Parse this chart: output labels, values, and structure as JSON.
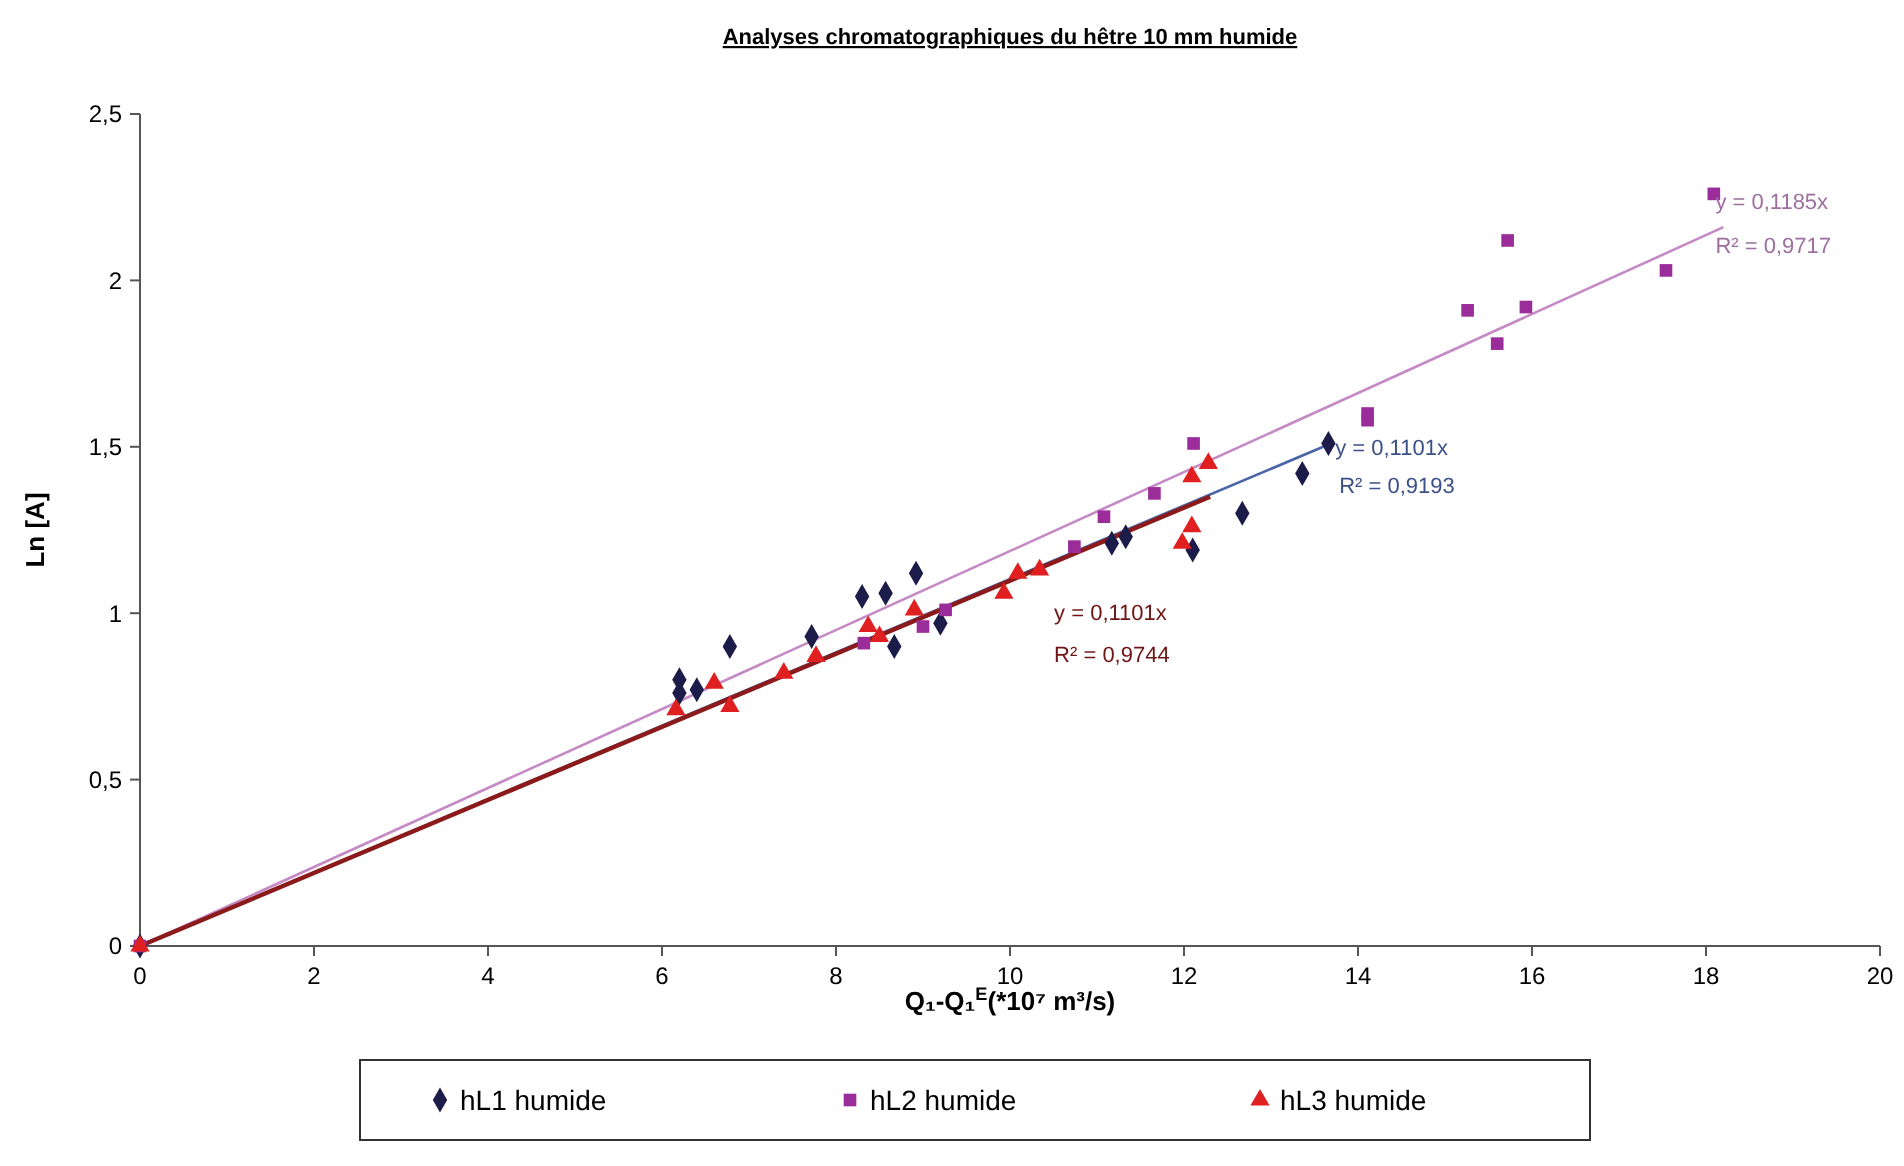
{
  "chart_data": {
    "type": "scatter",
    "title": "Analyses chromatographiques du hêtre 10 mm humide",
    "xlabel": "Q₁-Q₁$^{E}$(*10⁷ m³/s)",
    "ylabel": "Ln [A]",
    "xlim": [
      0,
      20
    ],
    "xticks": [
      0,
      2,
      4,
      6,
      8,
      10,
      12,
      14,
      16,
      18,
      20
    ],
    "ylim": [
      0,
      2.5
    ],
    "yticks": [
      0,
      {
        "value": 0.5,
        "label": "0,5"
      },
      1,
      {
        "value": 1.5,
        "label": "1,5"
      },
      2,
      {
        "value": 2.5,
        "label": "2,5"
      }
    ],
    "grid": false,
    "legend": "bottom",
    "series": [
      {
        "name": "hL1 humide",
        "color": "#1c1c4a",
        "marker": "diamond",
        "x": [
          0,
          6.2,
          6.2,
          6.4,
          6.78,
          7.72,
          8.3,
          8.57,
          8.92,
          8.67,
          9.2,
          11.17,
          11.33,
          12.1,
          12.67,
          13.36,
          13.66
        ],
        "values": [
          0,
          0.8,
          0.76,
          0.77,
          0.9,
          0.93,
          1.05,
          1.06,
          1.12,
          0.9,
          0.97,
          1.21,
          1.23,
          1.19,
          1.3,
          1.42,
          1.51
        ]
      },
      {
        "name": "hL2 humide",
        "color": "#9b2d9b",
        "marker": "square",
        "x": [
          0,
          8.32,
          9.0,
          9.26,
          10.74,
          11.08,
          11.66,
          12.11,
          14.11,
          14.11,
          15.26,
          15.6,
          15.72,
          15.93,
          17.54,
          18.09
        ],
        "values": [
          0,
          0.91,
          0.96,
          1.01,
          1.2,
          1.29,
          1.36,
          1.51,
          1.6,
          1.58,
          1.91,
          1.81,
          2.12,
          1.92,
          2.03,
          2.26
        ]
      },
      {
        "name": "hL3 humide",
        "color": "#e02020",
        "marker": "triangle",
        "x": [
          0,
          6.16,
          6.6,
          6.78,
          7.4,
          7.77,
          8.37,
          8.5,
          8.9,
          9.93,
          10.09,
          10.34,
          11.98,
          12.09,
          12.09,
          12.28
        ],
        "values": [
          0,
          0.71,
          0.79,
          0.72,
          0.82,
          0.87,
          0.96,
          0.93,
          1.01,
          1.06,
          1.12,
          1.13,
          1.21,
          1.26,
          1.41,
          1.45
        ]
      },
      {
        "type": "line",
        "color": "#4a64a8",
        "marker": "none",
        "x": [
          0,
          13.6
        ],
        "values": [
          0,
          1.5
        ]
      },
      {
        "type": "line",
        "color": "#c58ac5",
        "marker": "none",
        "x": [
          0,
          18.2
        ],
        "values": [
          0,
          2.16
        ]
      },
      {
        "type": "line",
        "color": "#8b1a1a",
        "marker": "none",
        "x": [
          0,
          12.3
        ],
        "values": [
          0,
          1.35
        ]
      }
    ],
    "annotations": [
      "y = 0,1185x",
      "R² = 0,9717",
      "y = 0,1101x",
      "R² = 0,9193",
      "y = 0,1101x",
      "R² = 0,9744"
    ]
  }
}
